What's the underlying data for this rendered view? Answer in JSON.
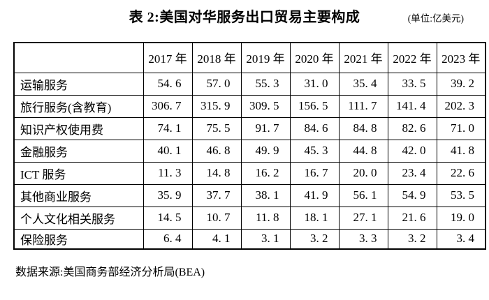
{
  "page": {
    "title": "表 2:美国对华服务出口贸易主要构成",
    "unit_note": "(单位:亿美元)",
    "source_note": "数据来源:美国商务部经济分析局(BEA)"
  },
  "table": {
    "corner_header": "",
    "columns": [
      "2017 年",
      "2018 年",
      "2019 年",
      "2020 年",
      "2021 年",
      "2022 年",
      "2023 年"
    ],
    "rows": [
      {
        "label": "运输服务",
        "values": [
          "54. 6",
          "57. 0",
          "55. 3",
          "31. 0",
          "35. 4",
          "33. 5",
          "39. 2"
        ]
      },
      {
        "label": "旅行服务(含教育)",
        "values": [
          "306. 7",
          "315. 9",
          "309. 5",
          "156. 5",
          "111. 7",
          "141. 4",
          "202. 3"
        ]
      },
      {
        "label": "知识产权使用费",
        "values": [
          "74. 1",
          "75. 5",
          "91. 7",
          "84. 6",
          "84. 8",
          "82. 6",
          "71. 0"
        ]
      },
      {
        "label": "金融服务",
        "values": [
          "40. 1",
          "46. 8",
          "49. 9",
          "45. 3",
          "44. 8",
          "42. 0",
          "41. 8"
        ]
      },
      {
        "label": "ICT 服务",
        "values": [
          "11. 3",
          "14. 8",
          "16. 2",
          "16. 7",
          "20. 0",
          "23. 4",
          "22. 6"
        ]
      },
      {
        "label": "其他商业服务",
        "values": [
          "35. 9",
          "37. 7",
          "38. 1",
          "41. 9",
          "56. 1",
          "54. 9",
          "53. 5"
        ]
      },
      {
        "label": "个人文化相关服务",
        "values": [
          "14. 5",
          "10. 7",
          "11. 8",
          "18. 1",
          "27. 1",
          "21. 6",
          "19. 0"
        ]
      },
      {
        "label": "保险服务",
        "values": [
          "6. 4",
          "4. 1",
          "3. 1",
          "3. 2",
          "3. 3",
          "3. 2",
          "3. 4"
        ]
      }
    ]
  },
  "colors": {
    "text": "#000000",
    "border": "#000000",
    "background": "#ffffff"
  }
}
